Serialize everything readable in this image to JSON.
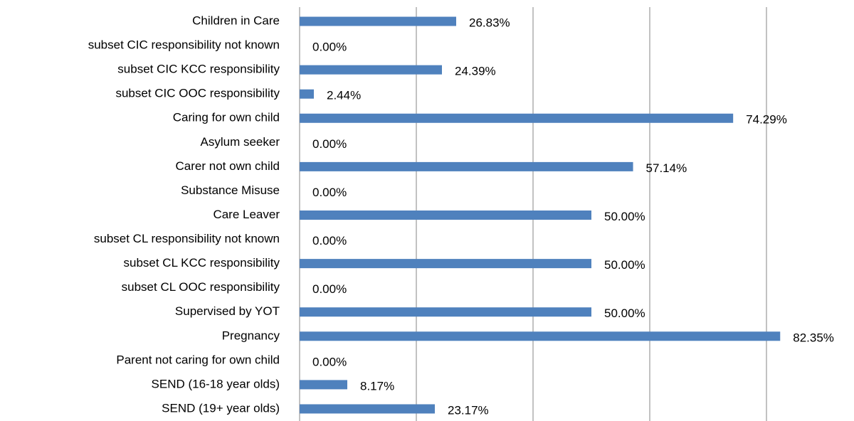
{
  "chart_data": {
    "type": "barh",
    "categories": [
      "Children in Care",
      "subset CIC responsibility not known",
      "subset CIC KCC responsibility",
      "subset CIC OOC responsibility",
      "Caring for own child",
      "Asylum seeker",
      "Carer not own child",
      "Substance Misuse",
      "Care Leaver",
      "subset CL responsibility not known",
      "subset CL KCC responsibility",
      "subset CL OOC responsibility",
      "Supervised by YOT",
      "Pregnancy",
      "Parent not caring for own child",
      "SEND (16-18 year olds)",
      "SEND (19+ year olds)"
    ],
    "values": [
      26.83,
      0,
      24.39,
      2.44,
      74.29,
      0,
      57.14,
      0,
      50,
      0,
      50,
      0,
      50,
      82.35,
      0,
      8.17,
      23.17
    ],
    "value_labels": [
      "26.83%",
      "0.00%",
      "24.39%",
      "2.44%",
      "74.29%",
      "0.00%",
      "57.14%",
      "0.00%",
      "50.00%",
      "0.00%",
      "50.00%",
      "0.00%",
      "50.00%",
      "82.35%",
      "0.00%",
      "8.17%",
      "23.17%"
    ],
    "color": "#4f81bd",
    "xlim": [
      0,
      95
    ],
    "xticks": [
      0,
      20,
      40,
      60,
      80
    ],
    "grid": true
  }
}
